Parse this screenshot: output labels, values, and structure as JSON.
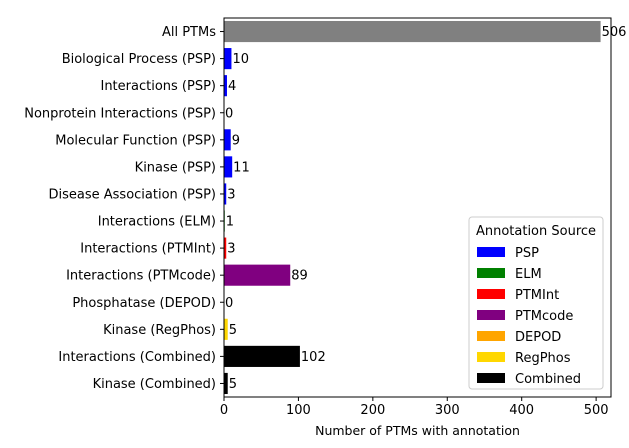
{
  "chart_data": {
    "type": "bar",
    "orientation": "horizontal",
    "xlabel": "Number of PTMs with annotation",
    "ylabel": "",
    "xlim": [
      0,
      520
    ],
    "xticks": [
      0,
      100,
      200,
      300,
      400,
      500
    ],
    "xtick_labels": [
      "0",
      "100",
      "200",
      "300",
      "400",
      "500"
    ],
    "grid": false,
    "categories": [
      "All PTMs",
      "Biological Process (PSP)",
      "Interactions (PSP)",
      "Nonprotein Interactions (PSP)",
      "Molecular Function (PSP)",
      "Kinase (PSP)",
      "Disease Association (PSP)",
      "Interactions (ELM)",
      "Interactions (PTMInt)",
      "Interactions (PTMcode)",
      "Phosphatase (DEPOD)",
      "Kinase (RegPhos)",
      "Interactions (Combined)",
      "Kinase (Combined)"
    ],
    "values": [
      506,
      10,
      4,
      0,
      9,
      11,
      3,
      1,
      3,
      89,
      0,
      5,
      102,
      5
    ],
    "value_labels": [
      "506",
      "10",
      "4",
      "0",
      "9",
      "11",
      "3",
      "1",
      "3",
      "89",
      "0",
      "5",
      "102",
      "5"
    ],
    "bar_sources": [
      "All",
      "PSP",
      "PSP",
      "PSP",
      "PSP",
      "PSP",
      "PSP",
      "ELM",
      "PTMInt",
      "PTMcode",
      "DEPOD",
      "RegPhos",
      "Combined",
      "Combined"
    ],
    "colors": {
      "All": "#808080",
      "PSP": "#0000ff",
      "ELM": "#008000",
      "PTMInt": "#ff0000",
      "PTMcode": "#800080",
      "DEPOD": "#ffa500",
      "RegPhos": "#ffd700",
      "Combined": "#000000"
    },
    "legend": {
      "title": "Annotation Source",
      "placement": "lower-right",
      "entries": [
        "PSP",
        "ELM",
        "PTMInt",
        "PTMcode",
        "DEPOD",
        "RegPhos",
        "Combined"
      ]
    }
  }
}
